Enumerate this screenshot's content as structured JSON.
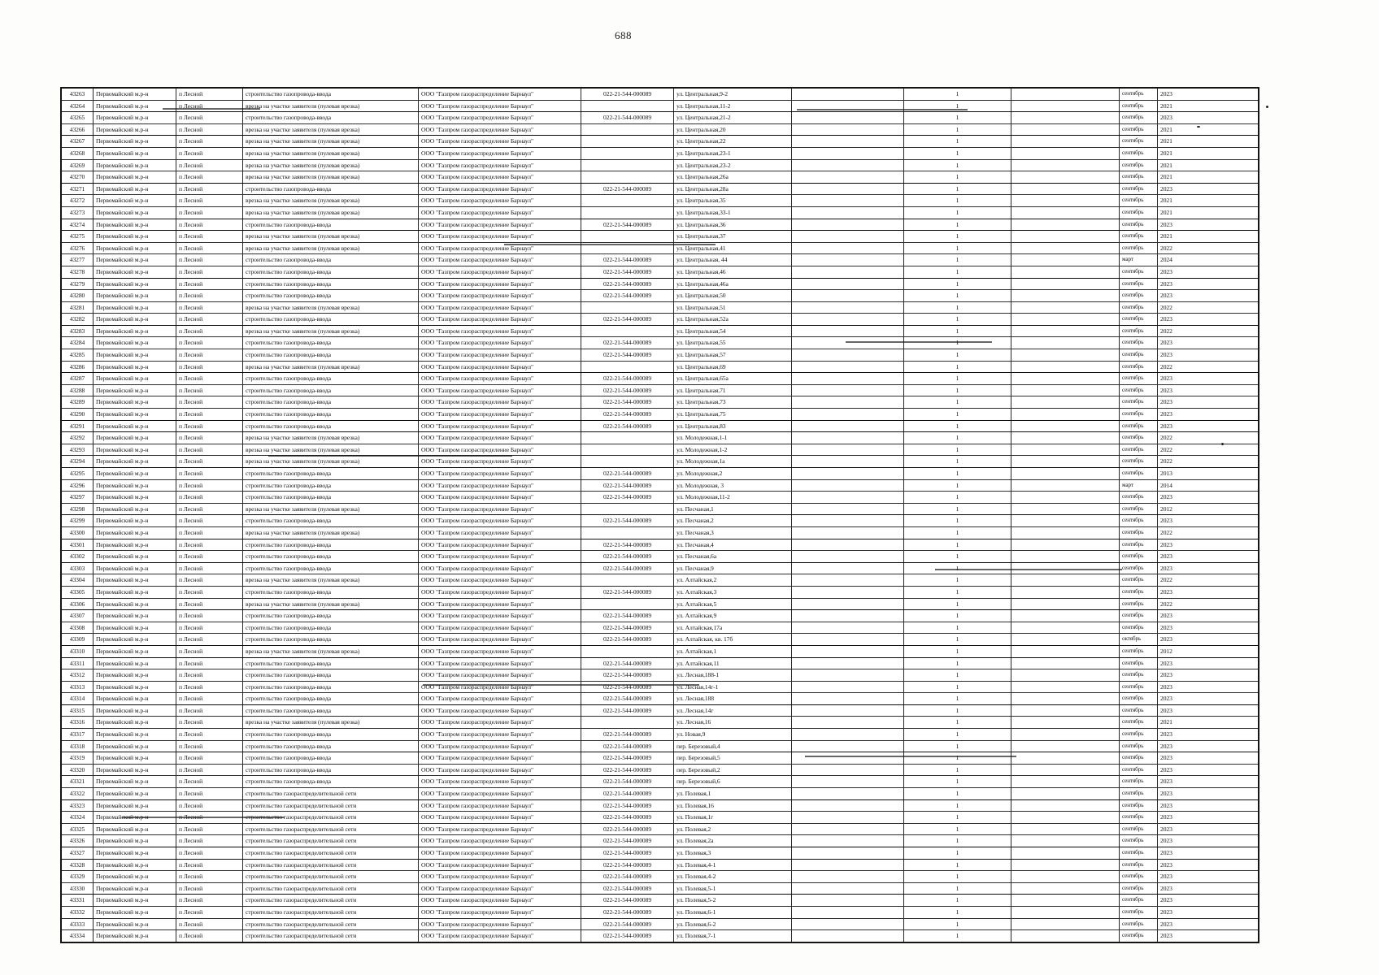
{
  "page": {
    "number": "688"
  },
  "table": {
    "common": {
      "district": "Первомайский м.р-н",
      "settlement": "п Лесной",
      "organization": "ООО \"Газпром газораспределение Барнаул\"",
      "code": "022-21-544-000089",
      "quantity": "1"
    },
    "work_types": {
      "vvod": "строительство газопровода-ввода",
      "vrezka": "врезка на участке заявителя (пулевая врезка)",
      "set": "строительство газораспределительной сети"
    },
    "rows": [
      [
        43263,
        "vvod",
        true,
        "ул. Центральная,9-2",
        "сентябрь",
        "2023"
      ],
      [
        43264,
        "vrezka",
        false,
        "ул. Центральная,11-2",
        "сентябрь",
        "2021"
      ],
      [
        43265,
        "vvod",
        true,
        "ул. Центральная,21-2",
        "сентябрь",
        "2023"
      ],
      [
        43266,
        "vrezka",
        false,
        "ул. Центральная,20",
        "сентябрь",
        "2021"
      ],
      [
        43267,
        "vrezka",
        false,
        "ул. Центральная,22",
        "сентябрь",
        "2021"
      ],
      [
        43268,
        "vrezka",
        false,
        "ул. Центральная,23-1",
        "сентябрь",
        "2021"
      ],
      [
        43269,
        "vrezka",
        false,
        "ул. Центральная,23-2",
        "сентябрь",
        "2021"
      ],
      [
        43270,
        "vrezka",
        false,
        "ул. Центральная,26а",
        "сентябрь",
        "2021"
      ],
      [
        43271,
        "vvod",
        true,
        "ул. Центральная,28а",
        "сентябрь",
        "2023"
      ],
      [
        43272,
        "vrezka",
        false,
        "ул. Центральная,35",
        "сентябрь",
        "2021"
      ],
      [
        43273,
        "vrezka",
        false,
        "ул. Центральная,33-1",
        "сентябрь",
        "2021"
      ],
      [
        43274,
        "vvod",
        true,
        "ул. Центральная,36",
        "сентябрь",
        "2023"
      ],
      [
        43275,
        "vrezka",
        false,
        "ул. Центральная,37",
        "сентябрь",
        "2021"
      ],
      [
        43276,
        "vrezka",
        false,
        "ул. Центральная,41",
        "сентябрь",
        "2022"
      ],
      [
        43277,
        "vvod",
        true,
        "ул. Центральная, 44",
        "март",
        "2024"
      ],
      [
        43278,
        "vvod",
        true,
        "ул. Центральная,46",
        "сентябрь",
        "2023"
      ],
      [
        43279,
        "vvod",
        true,
        "ул. Центральная,46а",
        "сентябрь",
        "2023"
      ],
      [
        43280,
        "vvod",
        true,
        "ул. Центральная,50",
        "сентябрь",
        "2023"
      ],
      [
        43281,
        "vrezka",
        false,
        "ул. Центральная,51",
        "сентябрь",
        "2022"
      ],
      [
        43282,
        "vvod",
        true,
        "ул. Центральная,52а",
        "сентябрь",
        "2023"
      ],
      [
        43283,
        "vrezka",
        false,
        "ул. Центральная,54",
        "сентябрь",
        "2022"
      ],
      [
        43284,
        "vvod",
        true,
        "ул. Центральная,55",
        "сентябрь",
        "2023"
      ],
      [
        43285,
        "vvod",
        true,
        "ул. Центральная,57",
        "сентябрь",
        "2023"
      ],
      [
        43286,
        "vrezka",
        false,
        "ул. Центральная,69",
        "сентябрь",
        "2022"
      ],
      [
        43287,
        "vvod",
        true,
        "ул. Центральная,65а",
        "сентябрь",
        "2023"
      ],
      [
        43288,
        "vvod",
        true,
        "ул. Центральная,71",
        "сентябрь",
        "2023"
      ],
      [
        43289,
        "vvod",
        true,
        "ул. Центральная,73",
        "сентябрь",
        "2023"
      ],
      [
        43290,
        "vvod",
        true,
        "ул. Центральная,75",
        "сентябрь",
        "2023"
      ],
      [
        43291,
        "vvod",
        true,
        "ул. Центральная,83",
        "сентябрь",
        "2023"
      ],
      [
        43292,
        "vrezka",
        false,
        "ул. Молодежная,1-1",
        "сентябрь",
        "2022"
      ],
      [
        43293,
        "vrezka",
        false,
        "ул. Молодежная,1-2",
        "сентябрь",
        "2022"
      ],
      [
        43294,
        "vrezka",
        false,
        "ул. Молодежная,1а",
        "сентябрь",
        "2022"
      ],
      [
        43295,
        "vvod",
        true,
        "ул. Молодежная,2",
        "сентябрь",
        "2013"
      ],
      [
        43296,
        "vvod",
        true,
        "ул. Молодежная, 3",
        "март",
        "2014"
      ],
      [
        43297,
        "vvod",
        true,
        "ул. Молодежная,11-2",
        "сентябрь",
        "2023"
      ],
      [
        43298,
        "vrezka",
        false,
        "ул. Песчаная,1",
        "сентябрь",
        "2012"
      ],
      [
        43299,
        "vvod",
        true,
        "ул. Песчаная,2",
        "сентябрь",
        "2023"
      ],
      [
        43300,
        "vrezka",
        false,
        "ул. Песчаная,3",
        "сентябрь",
        "2022"
      ],
      [
        43301,
        "vvod",
        true,
        "ул. Песчаная,4",
        "сентябрь",
        "2023"
      ],
      [
        43302,
        "vvod",
        true,
        "ул. Песчаная,6а",
        "сентябрь",
        "2023"
      ],
      [
        43303,
        "vvod",
        true,
        "ул. Песчаная,9",
        "сентябрь",
        "2023"
      ],
      [
        43304,
        "vrezka",
        false,
        "ул. Алтайская,2",
        "сентябрь",
        "2022"
      ],
      [
        43305,
        "vvod",
        true,
        "ул. Алтайская,3",
        "сентябрь",
        "2023"
      ],
      [
        43306,
        "vrezka",
        false,
        "ул. Алтайская,5",
        "сентябрь",
        "2022"
      ],
      [
        43307,
        "vvod",
        true,
        "ул. Алтайская,9",
        "сентябрь",
        "2023"
      ],
      [
        43308,
        "vvod",
        true,
        "ул. Алтайская,17а",
        "сентябрь",
        "2023"
      ],
      [
        43309,
        "vvod",
        true,
        "ул. Алтайская, кв. 17б",
        "октябрь",
        "2023"
      ],
      [
        43310,
        "vrezka",
        false,
        "ул. Алтайская,1",
        "сентябрь",
        "2012"
      ],
      [
        43311,
        "vvod",
        true,
        "ул. Алтайская,11",
        "сентябрь",
        "2023"
      ],
      [
        43312,
        "vvod",
        true,
        "ул. Лесная,188-1",
        "сентябрь",
        "2023"
      ],
      [
        43313,
        "vvod",
        true,
        "ул. Лесная,14г-1",
        "сентябрь",
        "2023"
      ],
      [
        43314,
        "vvod",
        true,
        "ул. Лесная,188",
        "сентябрь",
        "2023"
      ],
      [
        43315,
        "vvod",
        true,
        "ул. Лесная,14г",
        "сентябрь",
        "2023"
      ],
      [
        43316,
        "vrezka",
        false,
        "ул. Лесная,16",
        "сентябрь",
        "2021"
      ],
      [
        43317,
        "vvod",
        true,
        "ул. Новая,9",
        "сентябрь",
        "2023"
      ],
      [
        43318,
        "vvod",
        true,
        "пер. Березовый,4",
        "сентябрь",
        "2023"
      ],
      [
        43319,
        "vvod",
        true,
        "пер. Березовый,5",
        "сентябрь",
        "2023"
      ],
      [
        43320,
        "vvod",
        true,
        "пер. Березовый,2",
        "сентябрь",
        "2023"
      ],
      [
        43321,
        "vvod",
        true,
        "пер. Березовый,6",
        "сентябрь",
        "2023"
      ],
      [
        43322,
        "set",
        true,
        "ул. Полевая,1",
        "сентябрь",
        "2023"
      ],
      [
        43323,
        "set",
        true,
        "ул. Полевая,16",
        "сентябрь",
        "2023"
      ],
      [
        43324,
        "set",
        true,
        "ул. Полевая,1г",
        "сентябрь",
        "2023"
      ],
      [
        43325,
        "set",
        true,
        "ул. Полевая,2",
        "сентябрь",
        "2023"
      ],
      [
        43326,
        "set",
        true,
        "ул. Полевая,2а",
        "сентябрь",
        "2023"
      ],
      [
        43327,
        "set",
        true,
        "ул. Полевая,3",
        "сентябрь",
        "2023"
      ],
      [
        43328,
        "set",
        true,
        "ул. Полевая,4-1",
        "сентябрь",
        "2023"
      ],
      [
        43329,
        "set",
        true,
        "ул. Полевая,4-2",
        "сентябрь",
        "2023"
      ],
      [
        43330,
        "set",
        true,
        "ул. Полевая,5-1",
        "сентябрь",
        "2023"
      ],
      [
        43331,
        "set",
        true,
        "ул. Полевая,5-2",
        "сентябрь",
        "2023"
      ],
      [
        43332,
        "set",
        true,
        "ул. Полевая,6-1",
        "сентябрь",
        "2023"
      ],
      [
        43333,
        "set",
        true,
        "ул. Полевая,6-2",
        "сентябрь",
        "2023"
      ],
      [
        43334,
        "set",
        true,
        "ул. Полевая,7-1",
        "сентябрь",
        "2023"
      ]
    ]
  }
}
